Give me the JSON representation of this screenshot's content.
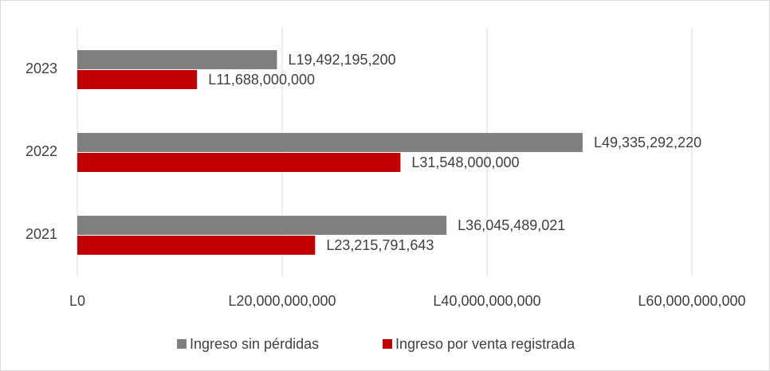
{
  "chart_data": {
    "type": "barh",
    "categories": [
      "2021",
      "2022",
      "2023"
    ],
    "series": [
      {
        "name": "Ingreso sin pérdidas",
        "color": "#7f7f7f",
        "values": [
          36045489021,
          49335292220,
          19492195200
        ],
        "value_labels": [
          "L36,045,489,021",
          "L49,335,292,220",
          "L19,492,195,200"
        ]
      },
      {
        "name": "Ingreso por venta registrada",
        "color": "#c00000",
        "values": [
          23215791643,
          31548000000,
          11688000000
        ],
        "value_labels": [
          "L23,215,791,643",
          "L31,548,000,000",
          "L11,688,000,000"
        ]
      }
    ],
    "xlim": [
      0,
      60000000000
    ],
    "xticks": [
      {
        "value": 0,
        "label": "L0"
      },
      {
        "value": 20000000000,
        "label": "L20,000,000,000"
      },
      {
        "value": 40000000000,
        "label": "L40,000,000,000"
      },
      {
        "value": 60000000000,
        "label": "L60,000,000,000"
      }
    ],
    "grid": true,
    "legend": "bottom"
  }
}
